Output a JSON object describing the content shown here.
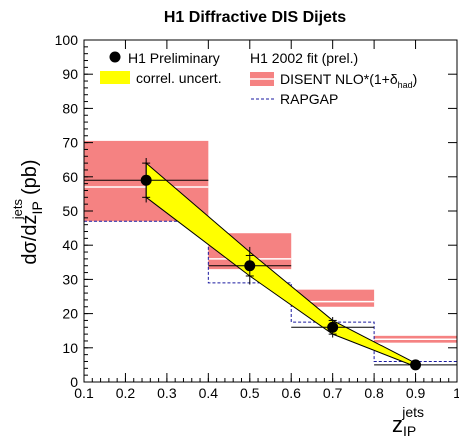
{
  "chart_data": {
    "type": "bar",
    "title": "H1 Diffractive DIS Dijets",
    "xlabel": "z",
    "xlabel_sub": "IP",
    "xlabel_sup": "jets",
    "ylabel_prefix": "dσ/dz",
    "ylabel_sub": "IP",
    "ylabel_sup": "jets",
    "ylabel_unit": "(pb)",
    "xlim": [
      0.1,
      1.0
    ],
    "ylim": [
      0,
      100
    ],
    "x_ticks": [
      0.1,
      0.2,
      0.3,
      0.4,
      0.5,
      0.6,
      0.7,
      0.8,
      0.9,
      1
    ],
    "y_ticks": [
      0,
      10,
      20,
      30,
      40,
      50,
      60,
      70,
      80,
      90,
      100
    ],
    "legend": {
      "data": "H1 Preliminary",
      "band": "correl. uncert.",
      "fit_header": "H1 2002 fit (prel.)",
      "nlo_main": "DISENT NLO*(1+δ",
      "nlo_sub": "had",
      "nlo_close": ")",
      "rapgap": "RAPGAP"
    },
    "colors": {
      "nlo_fill": "#f58282",
      "nlo_line": "#ffffff",
      "band": "#ffff00",
      "rapgap": "#1a1aa0",
      "data": "#000000"
    },
    "data_points": [
      {
        "x": 0.25,
        "x_low": 0.1,
        "x_high": 0.4,
        "y": 59,
        "stat_err": 5,
        "tot_err": 6.5
      },
      {
        "x": 0.5,
        "x_low": 0.4,
        "x_high": 0.6,
        "y": 34,
        "stat_err": 3,
        "tot_err": 5.5
      },
      {
        "x": 0.7,
        "x_low": 0.6,
        "x_high": 0.8,
        "y": 16,
        "stat_err": 2,
        "tot_err": 3
      },
      {
        "x": 0.9,
        "x_low": 0.8,
        "x_high": 1.0,
        "y": 5,
        "stat_err": 0.5,
        "tot_err": 0.8
      }
    ],
    "correlated_band": [
      {
        "x": 0.25,
        "low": 54,
        "high": 64
      },
      {
        "x": 0.5,
        "low": 31,
        "high": 38
      },
      {
        "x": 0.7,
        "low": 14,
        "high": 18
      },
      {
        "x": 0.9,
        "low": 4.5,
        "high": 5.5
      }
    ],
    "disent_nlo": [
      {
        "x_low": 0.1,
        "x_high": 0.4,
        "low": 47,
        "high": 70.5,
        "central": 57
      },
      {
        "x_low": 0.4,
        "x_high": 0.6,
        "low": 33,
        "high": 43.5,
        "central": 36
      },
      {
        "x_low": 0.6,
        "x_high": 0.8,
        "low": 22,
        "high": 27,
        "central": 23.5
      },
      {
        "x_low": 0.8,
        "x_high": 1.0,
        "low": 11.5,
        "high": 13.5,
        "central": 12.5
      }
    ],
    "rapgap": [
      {
        "x_low": 0.1,
        "x_high": 0.4,
        "y": 47
      },
      {
        "x_low": 0.4,
        "x_high": 0.6,
        "y": 29
      },
      {
        "x_low": 0.6,
        "x_high": 0.8,
        "y": 17.5
      },
      {
        "x_low": 0.8,
        "x_high": 1.0,
        "y": 6
      }
    ]
  }
}
